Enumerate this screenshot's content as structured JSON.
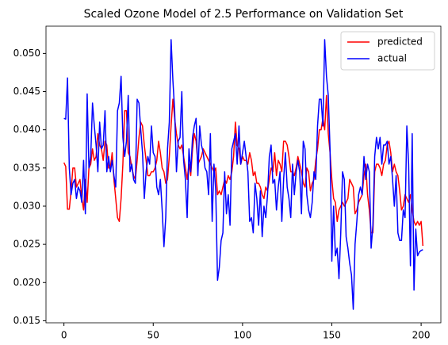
{
  "chart_data": {
    "type": "line",
    "title": "Scaled Ozone Model of 2.5 Performance on Validation Set",
    "x": [
      0,
      1,
      2,
      3,
      4,
      5,
      6,
      7,
      8,
      9,
      10,
      11,
      12,
      13,
      14,
      15,
      16,
      17,
      18,
      19,
      20,
      21,
      22,
      23,
      24,
      25,
      26,
      27,
      28,
      29,
      30,
      31,
      32,
      33,
      34,
      35,
      36,
      37,
      38,
      39,
      40,
      41,
      42,
      43,
      44,
      45,
      46,
      47,
      48,
      49,
      50,
      51,
      52,
      53,
      54,
      55,
      56,
      57,
      58,
      59,
      60,
      61,
      62,
      63,
      64,
      65,
      66,
      67,
      68,
      69,
      70,
      71,
      72,
      73,
      74,
      75,
      76,
      77,
      78,
      79,
      80,
      81,
      82,
      83,
      84,
      85,
      86,
      87,
      88,
      89,
      90,
      91,
      92,
      93,
      94,
      95,
      96,
      97,
      98,
      99,
      100,
      101,
      102,
      103,
      104,
      105,
      106,
      107,
      108,
      109,
      110,
      111,
      112,
      113,
      114,
      115,
      116,
      117,
      118,
      119,
      120,
      121,
      122,
      123,
      124,
      125,
      126,
      127,
      128,
      129,
      130,
      131,
      132,
      133,
      134,
      135,
      136,
      137,
      138,
      139,
      140,
      141,
      142,
      143,
      144,
      145,
      146,
      147,
      148,
      149,
      150,
      151,
      152,
      153,
      154,
      155,
      156,
      157,
      158,
      159,
      160,
      161,
      162,
      163,
      164,
      165,
      166,
      167,
      168,
      169,
      170,
      171,
      172,
      173,
      174,
      175,
      176,
      177,
      178,
      179,
      180,
      181,
      182,
      183,
      184,
      185,
      186,
      187,
      188,
      189,
      190,
      191,
      192,
      193,
      194,
      195,
      196,
      197,
      198,
      199,
      200,
      201
    ],
    "series": [
      {
        "name": "predicted",
        "color": "#ff0000",
        "values": [
          0.0357,
          0.0352,
          0.0296,
          0.0296,
          0.032,
          0.035,
          0.035,
          0.0325,
          0.033,
          0.0335,
          0.031,
          0.0295,
          0.0335,
          0.0305,
          0.035,
          0.0355,
          0.0375,
          0.036,
          0.0365,
          0.0395,
          0.038,
          0.0375,
          0.036,
          0.0385,
          0.038,
          0.035,
          0.035,
          0.037,
          0.0335,
          0.031,
          0.0285,
          0.028,
          0.031,
          0.0355,
          0.0425,
          0.0425,
          0.037,
          0.0365,
          0.035,
          0.034,
          0.0335,
          0.036,
          0.039,
          0.041,
          0.0405,
          0.038,
          0.036,
          0.034,
          0.034,
          0.0345,
          0.0345,
          0.035,
          0.036,
          0.0385,
          0.037,
          0.035,
          0.0345,
          0.033,
          0.0335,
          0.0365,
          0.0405,
          0.044,
          0.0415,
          0.0395,
          0.038,
          0.0375,
          0.038,
          0.0365,
          0.035,
          0.0335,
          0.0355,
          0.034,
          0.0375,
          0.0395,
          0.0385,
          0.0355,
          0.036,
          0.0365,
          0.0375,
          0.037,
          0.0365,
          0.036,
          0.0355,
          0.035,
          0.0345,
          0.035,
          0.0315,
          0.032,
          0.0315,
          0.0325,
          0.0335,
          0.033,
          0.034,
          0.0335,
          0.0345,
          0.0365,
          0.041,
          0.038,
          0.0375,
          0.0355,
          0.0365,
          0.036,
          0.036,
          0.0355,
          0.037,
          0.036,
          0.034,
          0.0345,
          0.033,
          0.033,
          0.0325,
          0.0315,
          0.031,
          0.0325,
          0.032,
          0.0335,
          0.035,
          0.0345,
          0.037,
          0.034,
          0.036,
          0.0355,
          0.0345,
          0.0385,
          0.0385,
          0.038,
          0.0365,
          0.0345,
          0.0345,
          0.034,
          0.035,
          0.0365,
          0.0355,
          0.0345,
          0.033,
          0.0325,
          0.035,
          0.0345,
          0.032,
          0.033,
          0.0335,
          0.036,
          0.0375,
          0.04,
          0.04,
          0.0415,
          0.04,
          0.0445,
          0.0395,
          0.037,
          0.0335,
          0.031,
          0.0305,
          0.028,
          0.0295,
          0.03,
          0.0305,
          0.03,
          0.0305,
          0.031,
          0.0335,
          0.033,
          0.0325,
          0.029,
          0.0295,
          0.0305,
          0.031,
          0.0315,
          0.034,
          0.0355,
          0.0315,
          0.0295,
          0.0265,
          0.0265,
          0.0345,
          0.0355,
          0.0355,
          0.035,
          0.034,
          0.0355,
          0.036,
          0.038,
          0.0385,
          0.037,
          0.0345,
          0.0355,
          0.0345,
          0.034,
          0.032,
          0.0295,
          0.03,
          0.0315,
          0.031,
          0.0305,
          0.0315,
          0.0295,
          0.028,
          0.0275,
          0.028,
          0.0275,
          0.028,
          0.0248
        ]
      },
      {
        "name": "actual",
        "color": "#0000ff",
        "values": [
          0.0415,
          0.0414,
          0.0468,
          0.035,
          0.0315,
          0.033,
          0.0335,
          0.031,
          0.0325,
          0.032,
          0.0305,
          0.036,
          0.029,
          0.0447,
          0.035,
          0.0365,
          0.0435,
          0.0405,
          0.038,
          0.0345,
          0.041,
          0.0375,
          0.038,
          0.0425,
          0.0345,
          0.0365,
          0.0345,
          0.036,
          0.034,
          0.0325,
          0.0425,
          0.0435,
          0.047,
          0.039,
          0.0365,
          0.0385,
          0.0445,
          0.0345,
          0.0355,
          0.0335,
          0.033,
          0.044,
          0.0435,
          0.04,
          0.037,
          0.031,
          0.0345,
          0.0365,
          0.0355,
          0.0405,
          0.037,
          0.0365,
          0.0325,
          0.0315,
          0.0335,
          0.0295,
          0.0247,
          0.0285,
          0.0375,
          0.041,
          0.0518,
          0.0465,
          0.0425,
          0.0345,
          0.0385,
          0.039,
          0.045,
          0.036,
          0.0335,
          0.0285,
          0.0375,
          0.0345,
          0.039,
          0.0405,
          0.0415,
          0.034,
          0.0405,
          0.038,
          0.037,
          0.035,
          0.0345,
          0.0315,
          0.0395,
          0.028,
          0.0355,
          0.032,
          0.0203,
          0.022,
          0.0255,
          0.0265,
          0.0345,
          0.029,
          0.0315,
          0.0275,
          0.0375,
          0.0385,
          0.0395,
          0.0355,
          0.0405,
          0.0355,
          0.037,
          0.0385,
          0.0365,
          0.0345,
          0.028,
          0.0285,
          0.0265,
          0.033,
          0.031,
          0.0275,
          0.032,
          0.026,
          0.03,
          0.0285,
          0.0315,
          0.0365,
          0.038,
          0.033,
          0.0335,
          0.0295,
          0.0325,
          0.0345,
          0.028,
          0.0335,
          0.037,
          0.0325,
          0.031,
          0.0285,
          0.0355,
          0.0315,
          0.0345,
          0.036,
          0.0345,
          0.029,
          0.0385,
          0.0375,
          0.0315,
          0.0295,
          0.0285,
          0.0305,
          0.0345,
          0.0335,
          0.0405,
          0.044,
          0.044,
          0.0405,
          0.0518,
          0.047,
          0.0445,
          0.0375,
          0.0228,
          0.03,
          0.0235,
          0.0245,
          0.0205,
          0.0265,
          0.0345,
          0.0335,
          0.026,
          0.0245,
          0.0225,
          0.021,
          0.0165,
          0.025,
          0.028,
          0.0315,
          0.0325,
          0.0315,
          0.0365,
          0.0335,
          0.0355,
          0.0345,
          0.0245,
          0.0275,
          0.0365,
          0.039,
          0.0375,
          0.039,
          0.0355,
          0.038,
          0.038,
          0.0385,
          0.0355,
          0.0365,
          0.0335,
          0.03,
          0.034,
          0.0265,
          0.0255,
          0.0255,
          0.0295,
          0.0285,
          0.0405,
          0.0355,
          0.0222,
          0.0395,
          0.019,
          0.027,
          0.0235,
          0.024,
          0.0242,
          0.0243
        ]
      }
    ],
    "xlim": [
      -10.05,
      211.05
    ],
    "xticks": [
      0,
      50,
      100,
      150,
      200
    ],
    "ylim": [
      0.01473,
      0.05357
    ],
    "yticks": [
      0.015,
      {
        "value": 0.02,
        "label": "0.020"
      },
      0.025,
      {
        "value": 0.03,
        "label": "0.030"
      },
      0.035,
      {
        "value": 0.04,
        "label": "0.040"
      },
      0.045,
      {
        "value": 0.05,
        "label": "0.050"
      }
    ],
    "legend": "upper right"
  }
}
